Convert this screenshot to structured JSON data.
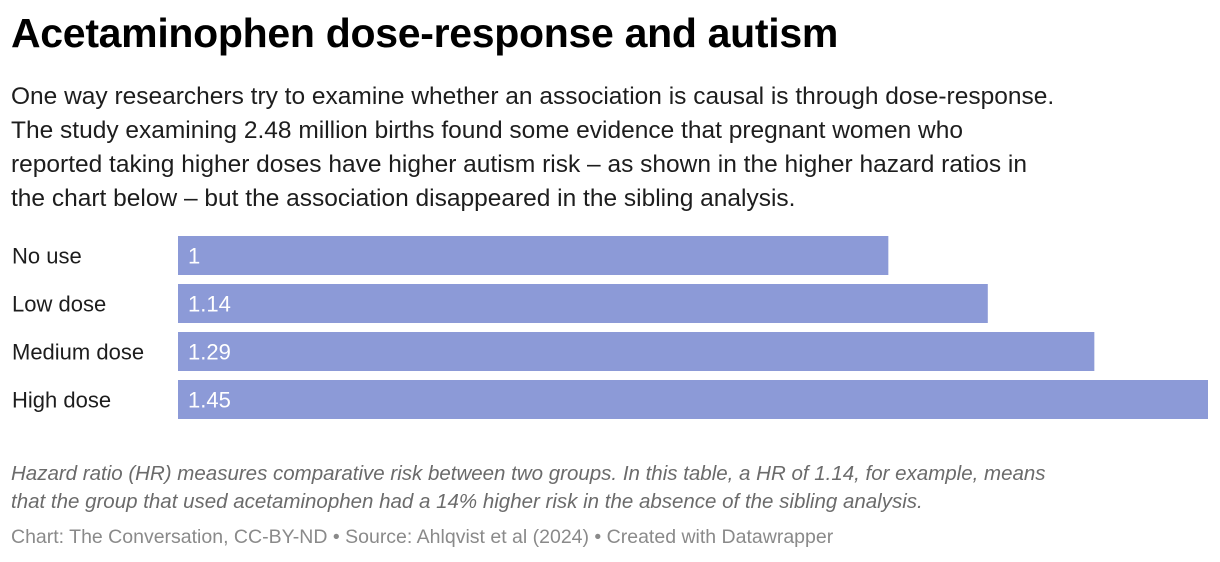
{
  "header": {
    "title": "Acetaminophen dose-response and autism",
    "description_lines": [
      "One way researchers try to examine whether an association is causal is through dose-response.",
      "The study examining 2.48 million births found some evidence that pregnant women who",
      "reported taking higher doses have higher autism risk – as shown in the higher hazard ratios in",
      "the chart below – but the association disappeared in the sibling analysis."
    ]
  },
  "chart_data": {
    "type": "bar",
    "orientation": "horizontal",
    "categories": [
      "No use",
      "Low dose",
      "Medium dose",
      "High dose"
    ],
    "values": [
      1,
      1.14,
      1.29,
      1.45
    ],
    "value_labels": [
      "1",
      "1.14",
      "1.29",
      "1.45"
    ],
    "xlim": [
      0,
      1.45
    ],
    "grid": false,
    "legend": false,
    "bar_color": "#8c9ad7",
    "value_label_color": "#ffffff"
  },
  "notes": {
    "lines": [
      "Hazard ratio (HR) measures comparative risk between two groups. In this table, a HR of 1.14, for example, means",
      "that the group that used acetaminophen had a 14% higher risk in the absence of the sibling analysis."
    ]
  },
  "footer": {
    "text": "Chart: The Conversation, CC-BY-ND • Source: Ahlqvist et al (2024) • Created with Datawrapper"
  }
}
